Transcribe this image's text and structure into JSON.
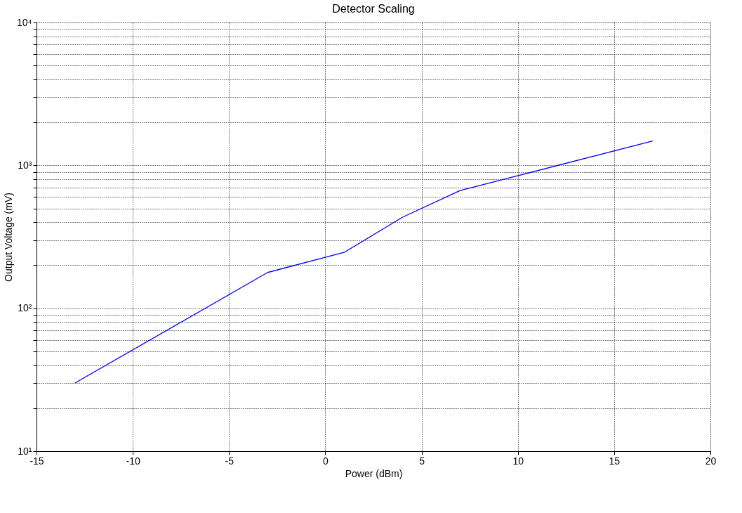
{
  "chart_data": {
    "type": "line",
    "title": "Detector Scaling",
    "xlabel": "Power (dBm)",
    "ylabel": "Output Voltage (mV)",
    "x": [
      -13,
      -3,
      1,
      4,
      7,
      17
    ],
    "series": [
      {
        "color": "#0000ff",
        "values": [
          30,
          178,
          247,
          433,
          667,
          1480
        ]
      }
    ],
    "xlim": [
      -15,
      20
    ],
    "xticks": [
      -15,
      -10,
      -5,
      0,
      5,
      10,
      15,
      20
    ],
    "ylim": [
      10,
      10000
    ],
    "log": true,
    "yticks": [
      {
        "value": 10,
        "label": "10¹"
      },
      {
        "value": 20,
        "label": null
      },
      {
        "value": 30,
        "label": null
      },
      {
        "value": 40,
        "label": null
      },
      {
        "value": 50,
        "label": null
      },
      {
        "value": 60,
        "label": null
      },
      {
        "value": 70,
        "label": null
      },
      {
        "value": 80,
        "label": null
      },
      {
        "value": 90,
        "label": null
      },
      {
        "value": 100,
        "label": "10²"
      },
      {
        "value": 200,
        "label": null
      },
      {
        "value": 300,
        "label": null
      },
      {
        "value": 400,
        "label": null
      },
      {
        "value": 500,
        "label": null
      },
      {
        "value": 600,
        "label": null
      },
      {
        "value": 700,
        "label": null
      },
      {
        "value": 800,
        "label": null
      },
      {
        "value": 900,
        "label": null
      },
      {
        "value": 1000,
        "label": "10³"
      },
      {
        "value": 2000,
        "label": null
      },
      {
        "value": 3000,
        "label": null
      },
      {
        "value": 4000,
        "label": null
      },
      {
        "value": 5000,
        "label": null
      },
      {
        "value": 6000,
        "label": null
      },
      {
        "value": 7000,
        "label": null
      },
      {
        "value": 8000,
        "label": null
      },
      {
        "value": 9000,
        "label": null
      },
      {
        "value": 10000,
        "label": "10⁴"
      }
    ],
    "grid": true,
    "line_style": "solid",
    "marker": "none"
  }
}
